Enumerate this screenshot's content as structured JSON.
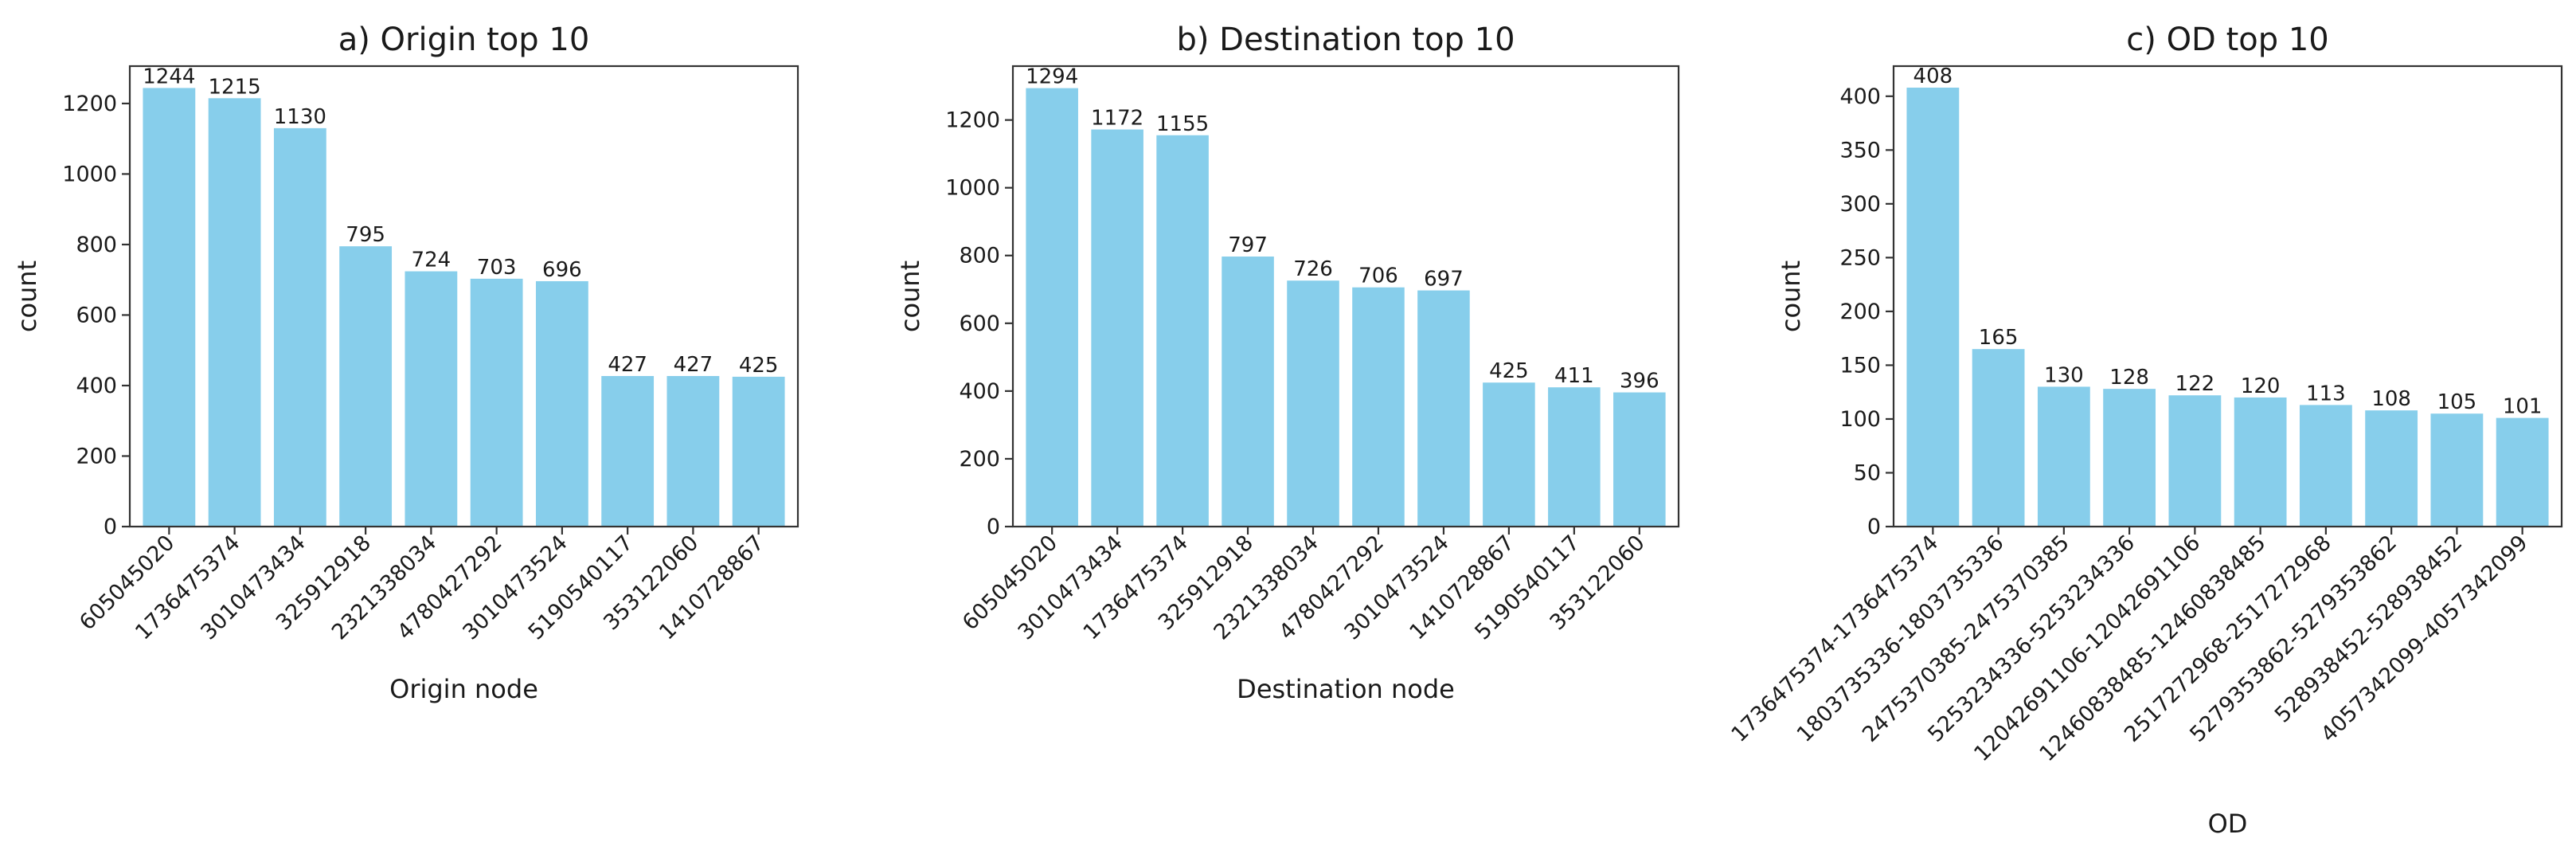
{
  "colors": {
    "bar": "#87CEEB",
    "axis": "#333333",
    "text": "#1a1a1a"
  },
  "chart_data": [
    {
      "type": "bar",
      "title": "a) Origin top 10",
      "xlabel": "Origin node",
      "ylabel": "count",
      "ylim": [
        0,
        1306
      ],
      "yticks": [
        0,
        200,
        400,
        600,
        800,
        1000,
        1200
      ],
      "categories": [
        "605045020",
        "1736475374",
        "3010473434",
        "325912918",
        "2321338034",
        "4780427292",
        "3010473524",
        "5190540117",
        "353122060",
        "1410728867"
      ],
      "values": [
        1244,
        1215,
        1130,
        795,
        724,
        703,
        696,
        427,
        427,
        425
      ],
      "grid": false
    },
    {
      "type": "bar",
      "title": "b) Destination top 10",
      "xlabel": "Destination node",
      "ylabel": "count",
      "ylim": [
        0,
        1359
      ],
      "yticks": [
        0,
        200,
        400,
        600,
        800,
        1000,
        1200
      ],
      "categories": [
        "605045020",
        "3010473434",
        "1736475374",
        "325912918",
        "2321338034",
        "4780427292",
        "3010473524",
        "1410728867",
        "5190540117",
        "353122060"
      ],
      "values": [
        1294,
        1172,
        1155,
        797,
        726,
        706,
        697,
        425,
        411,
        396
      ],
      "grid": false
    },
    {
      "type": "bar",
      "title": "c) OD top 10",
      "xlabel": "OD",
      "ylabel": "count",
      "ylim": [
        0,
        428
      ],
      "yticks": [
        0,
        50,
        100,
        150,
        200,
        250,
        300,
        350,
        400
      ],
      "categories": [
        "1736475374-1736475374",
        "1803735336-1803735336",
        "2475370385-2475370385",
        "525323433б-525323433б",
        "12042691106-12042691106",
        "12460838485-12460838485",
        "2517272968-2517272968",
        "5279353862-5279353862",
        "528938452-528938452",
        "4057342099-4057342099"
      ],
      "values": [
        408,
        165,
        130,
        128,
        122,
        120,
        113,
        108,
        105,
        101
      ],
      "grid": false
    }
  ]
}
